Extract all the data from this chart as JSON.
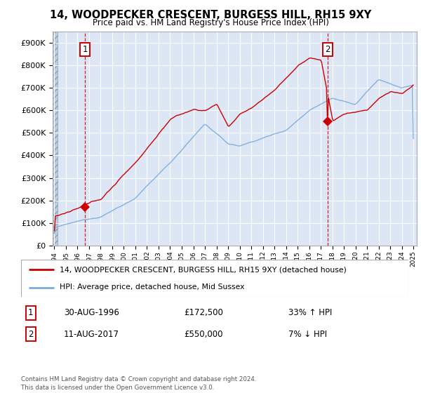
{
  "title": "14, WOODPECKER CRESCENT, BURGESS HILL, RH15 9XY",
  "subtitle": "Price paid vs. HM Land Registry's House Price Index (HPI)",
  "ylim": [
    0,
    950000
  ],
  "yticks": [
    0,
    100000,
    200000,
    300000,
    400000,
    500000,
    600000,
    700000,
    800000,
    900000
  ],
  "ytick_labels": [
    "£0",
    "£100K",
    "£200K",
    "£300K",
    "£400K",
    "£500K",
    "£600K",
    "£700K",
    "£800K",
    "£900K"
  ],
  "sale1_date": 1996.66,
  "sale1_price": 172500,
  "sale2_date": 2017.61,
  "sale2_price": 550000,
  "legend_line1": "14, WOODPECKER CRESCENT, BURGESS HILL, RH15 9XY (detached house)",
  "legend_line2": "HPI: Average price, detached house, Mid Sussex",
  "ann1_date": "30-AUG-1996",
  "ann1_price": "£172,500",
  "ann1_hpi": "33% ↑ HPI",
  "ann2_date": "11-AUG-2017",
  "ann2_price": "£550,000",
  "ann2_hpi": "7% ↓ HPI",
  "footer": "Contains HM Land Registry data © Crown copyright and database right 2024.\nThis data is licensed under the Open Government Licence v3.0.",
  "line_color_red": "#cc0000",
  "line_color_blue": "#7aabda",
  "bg_plot_color": "#dce6f5",
  "grid_color": "#ffffff",
  "annotation_box_color": "#cc0000"
}
